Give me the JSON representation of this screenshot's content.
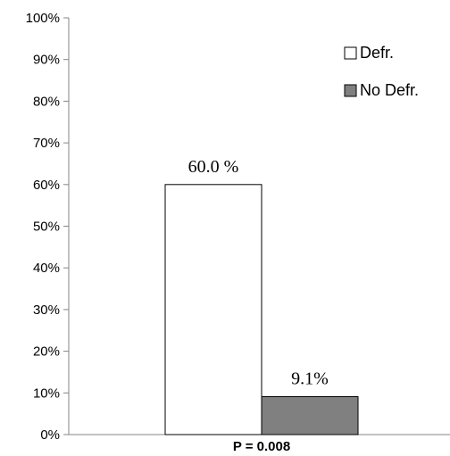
{
  "chart_data": {
    "type": "bar",
    "title": "",
    "xlabel": "P = 0.008",
    "ylabel": "",
    "ylim": [
      0,
      100
    ],
    "y_ticks": [
      "0%",
      "10%",
      "20%",
      "30%",
      "40%",
      "50%",
      "60%",
      "70%",
      "80%",
      "90%",
      "100%"
    ],
    "grid": false,
    "legend_position": "top-right",
    "series": [
      {
        "name": "Defr.",
        "value": 60.0,
        "data_label": "60.0 %",
        "color": "#ffffff"
      },
      {
        "name": "No Defr.",
        "value": 9.1,
        "data_label": "9.1%",
        "color": "#808080"
      }
    ]
  }
}
